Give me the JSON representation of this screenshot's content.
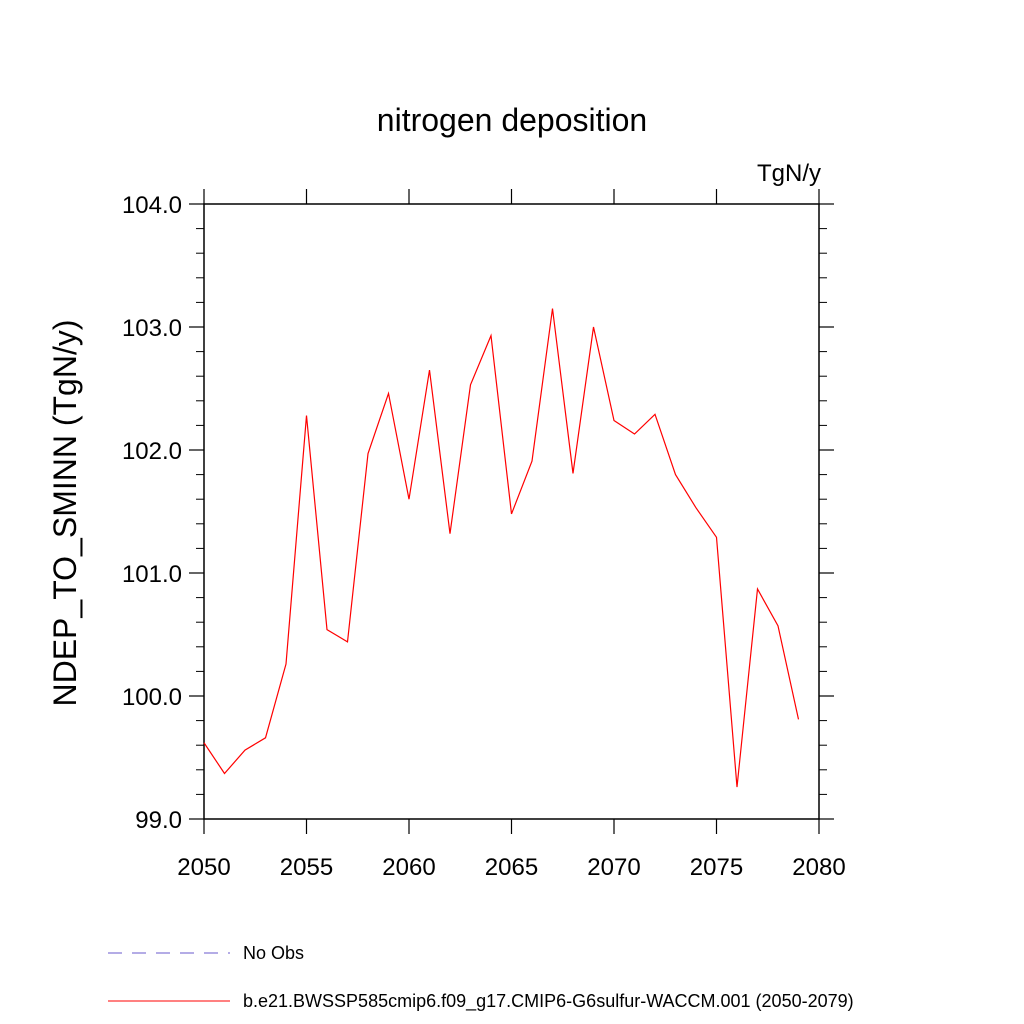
{
  "chart_data": {
    "type": "line",
    "title": "nitrogen deposition",
    "units_label": "TgN/y",
    "ylabel": "NDEP_TO_SMINN  (TgN/y)",
    "xlabel": "",
    "xlim": [
      2050,
      2080
    ],
    "ylim": [
      99.0,
      104.0
    ],
    "x_ticks": [
      2050,
      2055,
      2060,
      2065,
      2070,
      2075,
      2080
    ],
    "x_tick_labels": [
      "2050",
      "2055",
      "2060",
      "2065",
      "2070",
      "2075",
      "2080"
    ],
    "y_ticks": [
      99.0,
      100.0,
      101.0,
      102.0,
      103.0,
      104.0
    ],
    "y_tick_labels": [
      "99.0",
      "100.0",
      "101.0",
      "102.0",
      "103.0",
      "104.0"
    ],
    "grid": false,
    "legend_position": "bottom-left",
    "series": [
      {
        "name": "No Obs",
        "color": "#6a5acd",
        "dash": "dashed",
        "x": [],
        "values": []
      },
      {
        "name": "b.e21.BWSSP585cmip6.f09_g17.CMIP6-G6sulfur-WACCM.001 (2050-2079)",
        "color": "#ff0000",
        "dash": "solid",
        "x": [
          2050,
          2051,
          2052,
          2053,
          2054,
          2055,
          2056,
          2057,
          2058,
          2059,
          2060,
          2061,
          2062,
          2063,
          2064,
          2065,
          2066,
          2067,
          2068,
          2069,
          2070,
          2071,
          2072,
          2073,
          2074,
          2075,
          2076,
          2077,
          2078,
          2079
        ],
        "values": [
          99.62,
          99.37,
          99.56,
          99.66,
          100.26,
          102.28,
          100.54,
          100.44,
          101.97,
          102.46,
          101.6,
          102.65,
          101.32,
          102.53,
          102.93,
          101.48,
          101.91,
          103.15,
          101.81,
          103.0,
          102.24,
          102.13,
          102.29,
          101.8,
          101.53,
          101.29,
          99.26,
          100.87,
          100.57,
          99.81
        ]
      }
    ]
  }
}
